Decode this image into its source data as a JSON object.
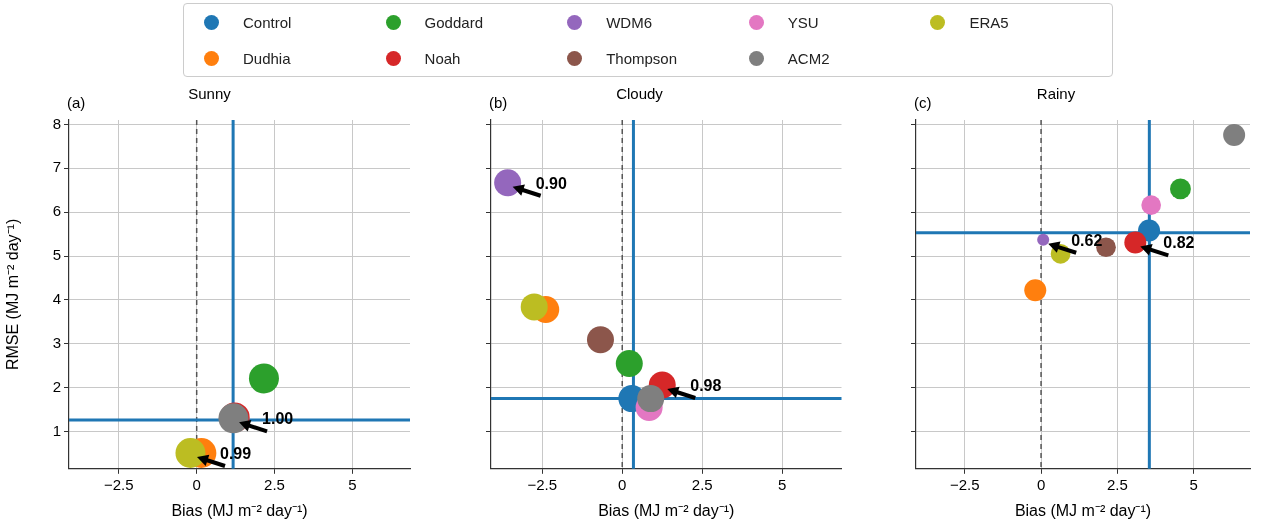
{
  "chart_data": [
    {
      "type": "bubble",
      "title": "Sunny",
      "annotations": [
        "(a)",
        {
          "text": "1.00",
          "x": 1.2,
          "y": 1.3
        },
        {
          "text": "0.99",
          "x": -0.15,
          "y": 0.51
        }
      ],
      "xlabel": "Bias (MJ m⁻² day⁻¹)",
      "ylabel": "RMSE (MJ m⁻² day⁻¹)",
      "xlim": [
        -4.1,
        6.85
      ],
      "ylim": [
        0.15,
        8.1
      ],
      "xticks": [
        -2.5,
        0,
        2.5,
        5
      ],
      "yticks": [
        1,
        2,
        3,
        4,
        5,
        6,
        7,
        8
      ],
      "grid": true,
      "legend": "top",
      "ref_lines": [
        {
          "axis": "x",
          "value": 0,
          "color": "#555555",
          "line_style": "dashed"
        },
        {
          "axis": "x",
          "value": 1.17,
          "color": "#1f77b4",
          "line_style": "solid"
        },
        {
          "axis": "y",
          "value": 1.26,
          "color": "#1f77b4",
          "line_style": "solid"
        }
      ],
      "series": [
        {
          "name": "Control",
          "color": "#1f77b4",
          "x": [
            null
          ],
          "values": [
            null
          ],
          "sizes": [
            null
          ]
        },
        {
          "name": "Dudhia",
          "color": "#ff7f0e",
          "x": [
            0.15
          ],
          "values": [
            0.51
          ],
          "sizes": [
            1
          ]
        },
        {
          "name": "Goddard",
          "color": "#2ca02c",
          "x": [
            2.16
          ],
          "values": [
            2.21
          ],
          "sizes": [
            1
          ]
        },
        {
          "name": "Noah",
          "color": "#d62728",
          "x": [
            1.22
          ],
          "values": [
            1.32
          ],
          "sizes": [
            1
          ]
        },
        {
          "name": "WDM6",
          "color": "#9467bd",
          "x": [
            null
          ],
          "values": [
            null
          ],
          "sizes": [
            null
          ]
        },
        {
          "name": "Thompson",
          "color": "#8c564b",
          "x": [
            null
          ],
          "values": [
            null
          ],
          "sizes": [
            null
          ]
        },
        {
          "name": "YSU",
          "color": "#e377c2",
          "x": [
            null
          ],
          "values": [
            null
          ],
          "sizes": [
            null
          ]
        },
        {
          "name": "ACM2",
          "color": "#7f7f7f",
          "x": [
            1.18
          ],
          "values": [
            1.3
          ],
          "sizes": [
            1
          ]
        },
        {
          "name": "ERA5",
          "color": "#bcbd22",
          "x": [
            -0.2
          ],
          "values": [
            0.51
          ],
          "sizes": [
            1
          ]
        }
      ]
    },
    {
      "type": "bubble",
      "title": "Cloudy",
      "annotations": [
        "(b)",
        {
          "text": "0.90",
          "x": -3.58,
          "y": 6.67
        },
        {
          "text": "0.98",
          "x": 1.25,
          "y": 2.06
        }
      ],
      "xlabel": "Bias (MJ m⁻² day⁻¹)",
      "xlim": [
        -4.1,
        6.85
      ],
      "ylim": [
        0.15,
        8.1
      ],
      "xticks": [
        -2.5,
        0,
        2.5,
        5
      ],
      "yticks": [
        1,
        2,
        3,
        4,
        5,
        6,
        7,
        8
      ],
      "grid": true,
      "tick_labels": "x",
      "ref_lines": [
        {
          "axis": "x",
          "value": 0,
          "color": "#555555",
          "line_style": "dashed"
        },
        {
          "axis": "x",
          "value": 0.35,
          "color": "#1f77b4",
          "line_style": "solid"
        },
        {
          "axis": "y",
          "value": 1.75,
          "color": "#1f77b4",
          "line_style": "solid"
        }
      ],
      "series": [
        {
          "color": "#1f77b4",
          "x": [
            0.3
          ],
          "values": [
            1.75
          ],
          "sizes": [
            1
          ]
        },
        {
          "color": "#ff7f0e",
          "x": [
            -2.39
          ],
          "values": [
            3.78
          ],
          "sizes": [
            1
          ]
        },
        {
          "color": "#2ca02c",
          "x": [
            0.22
          ],
          "values": [
            2.55
          ],
          "sizes": [
            1
          ]
        },
        {
          "color": "#d62728",
          "x": [
            1.25
          ],
          "values": [
            2.06
          ],
          "sizes": [
            1
          ]
        },
        {
          "color": "#9467bd",
          "x": [
            -3.58
          ],
          "values": [
            6.67
          ],
          "sizes": [
            1
          ]
        },
        {
          "color": "#8c564b",
          "x": [
            -0.68
          ],
          "values": [
            3.09
          ],
          "sizes": [
            1
          ]
        },
        {
          "color": "#e377c2",
          "x": [
            0.84
          ],
          "values": [
            1.55
          ],
          "sizes": [
            1
          ]
        },
        {
          "color": "#7f7f7f",
          "x": [
            0.89
          ],
          "values": [
            1.75
          ],
          "sizes": [
            1
          ]
        },
        {
          "color": "#bcbd22",
          "x": [
            -2.75
          ],
          "values": [
            3.84
          ],
          "sizes": [
            1
          ]
        }
      ]
    },
    {
      "type": "bubble",
      "title": "Rainy",
      "annotations": [
        "(c)",
        {
          "text": "0.62",
          "x": 0.07,
          "y": 5.37
        },
        {
          "text": "0.82",
          "x": 3.09,
          "y": 5.31
        }
      ],
      "xlabel": "Bias (MJ m⁻² day⁻¹)",
      "xlim": [
        -4.1,
        6.85
      ],
      "ylim": [
        0.15,
        8.1
      ],
      "xticks": [
        -2.5,
        0,
        2.5,
        5
      ],
      "yticks": [
        1,
        2,
        3,
        4,
        5,
        6,
        7,
        8
      ],
      "grid": true,
      "tick_labels": "x",
      "ref_lines": [
        {
          "axis": "x",
          "value": 0,
          "color": "#555555",
          "line_style": "dashed"
        },
        {
          "axis": "x",
          "value": 3.55,
          "color": "#1f77b4",
          "line_style": "solid"
        },
        {
          "axis": "y",
          "value": 5.53,
          "color": "#1f77b4",
          "line_style": "solid"
        }
      ],
      "series": [
        {
          "color": "#1f77b4",
          "x": [
            3.54
          ],
          "values": [
            5.58
          ],
          "sizes": [
            1
          ]
        },
        {
          "color": "#ff7f0e",
          "x": [
            -0.19
          ],
          "values": [
            4.22
          ],
          "sizes": [
            1
          ]
        },
        {
          "color": "#2ca02c",
          "x": [
            4.57
          ],
          "values": [
            6.53
          ],
          "sizes": [
            0.9
          ]
        },
        {
          "color": "#d62728",
          "x": [
            3.09
          ],
          "values": [
            5.31
          ],
          "sizes": [
            1
          ]
        },
        {
          "color": "#9467bd",
          "x": [
            0.07
          ],
          "values": [
            5.37
          ],
          "sizes": [
            0.3
          ]
        },
        {
          "color": "#8c564b",
          "x": [
            2.13
          ],
          "values": [
            5.2
          ],
          "sizes": [
            0.8
          ]
        },
        {
          "color": "#e377c2",
          "x": [
            3.61
          ],
          "values": [
            6.16
          ],
          "sizes": [
            0.8
          ]
        },
        {
          "color": "#7f7f7f",
          "x": [
            6.33
          ],
          "values": [
            7.76
          ],
          "sizes": [
            1
          ]
        },
        {
          "color": "#bcbd22",
          "x": [
            0.64
          ],
          "values": [
            5.05
          ],
          "sizes": [
            0.8
          ]
        }
      ]
    }
  ]
}
